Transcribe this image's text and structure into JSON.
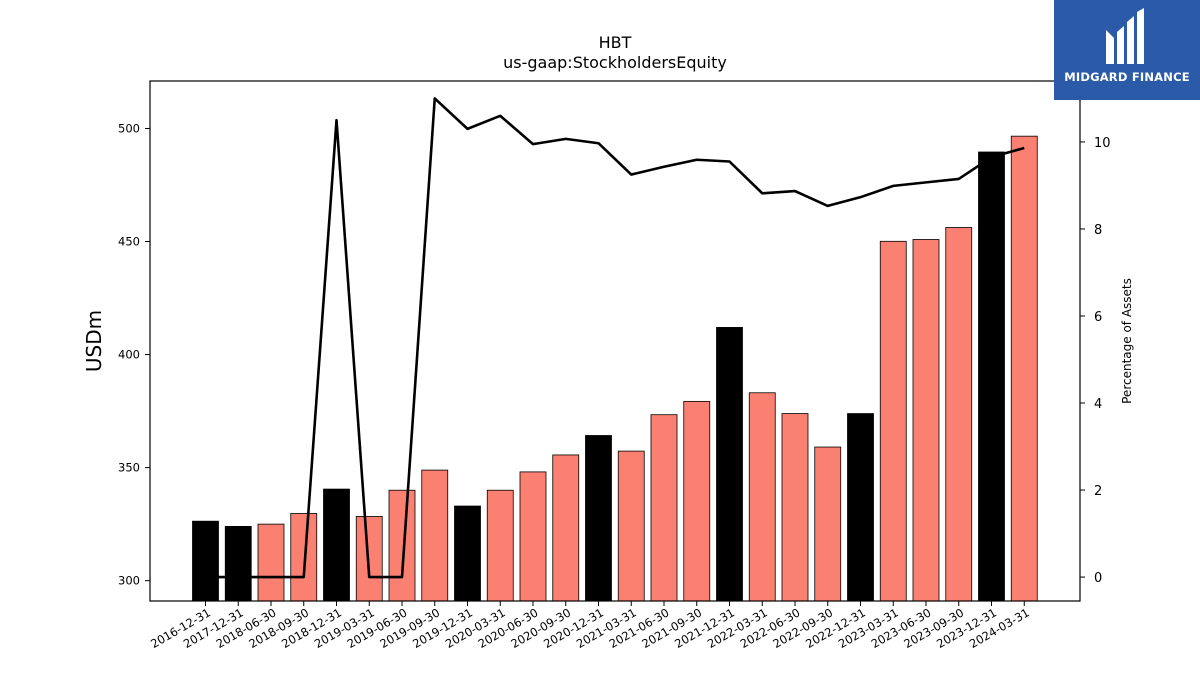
{
  "chart_data": {
    "type": "bar",
    "title": "HBT",
    "subtitle": "us-gaap:StockholdersEquity",
    "ylabel": "USDm",
    "y2label": "Percentage of Assets",
    "ylim": [
      291,
      521
    ],
    "y2lim": [
      -0.55,
      11.4
    ],
    "yticks": [
      300,
      350,
      400,
      450,
      500
    ],
    "y2ticks": [
      0,
      2,
      4,
      6,
      8,
      10
    ],
    "grid": false,
    "categories": [
      "2016-12-31",
      "2017-12-31",
      "2018-06-30",
      "2018-09-30",
      "2018-12-31",
      "2019-03-31",
      "2019-06-30",
      "2019-09-30",
      "2019-12-31",
      "2020-03-31",
      "2020-06-30",
      "2020-09-30",
      "2020-12-31",
      "2021-03-31",
      "2021-06-30",
      "2021-09-30",
      "2021-12-31",
      "2022-03-31",
      "2022-06-30",
      "2022-09-30",
      "2022-12-31",
      "2023-03-31",
      "2023-06-30",
      "2023-09-30",
      "2023-12-31",
      "2024-03-31"
    ],
    "series": [
      {
        "kind": "bar",
        "axis": "left",
        "values": [
          326.3,
          324.0,
          325.0,
          329.7,
          340.5,
          328.4,
          340.0,
          348.9,
          333.0,
          340.0,
          348.1,
          355.6,
          364.2,
          357.3,
          373.4,
          379.3,
          412.0,
          383.1,
          373.9,
          359.1,
          373.9,
          450.1,
          450.9,
          456.2,
          489.6,
          496.6
        ],
        "colors": [
          "#000000",
          "#000000",
          "#fa8072",
          "#fa8072",
          "#000000",
          "#fa8072",
          "#fa8072",
          "#fa8072",
          "#000000",
          "#fa8072",
          "#fa8072",
          "#fa8072",
          "#000000",
          "#fa8072",
          "#fa8072",
          "#fa8072",
          "#000000",
          "#fa8072",
          "#fa8072",
          "#fa8072",
          "#000000",
          "#fa8072",
          "#fa8072",
          "#fa8072",
          "#000000",
          "#fa8072"
        ]
      },
      {
        "kind": "line",
        "axis": "right",
        "color": "#000000",
        "values": [
          0,
          0,
          0,
          0,
          10.5,
          0,
          0,
          11.0,
          10.3,
          10.6,
          9.95,
          10.07,
          9.97,
          9.25,
          9.43,
          9.59,
          9.55,
          8.82,
          8.87,
          8.53,
          8.73,
          8.99,
          9.07,
          9.15,
          9.65,
          9.86
        ]
      }
    ]
  },
  "colors": {
    "quarter_bar": "#fa8072",
    "annual_bar": "#000000",
    "logo_bg": "#2b5aa8"
  },
  "logo": {
    "text": "MIDGARD FINANCE",
    "icon": "midgard-logo-icon"
  }
}
